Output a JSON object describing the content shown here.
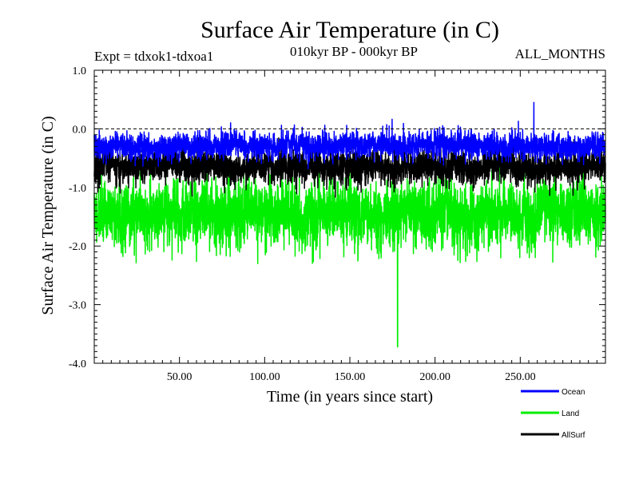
{
  "chart_data": {
    "type": "line",
    "title": "Surface Air Temperature (in C)",
    "subtitle_left": "Expt = tdxok1-tdxoa1",
    "subtitle_center": "010kyr BP - 000kyr BP",
    "subtitle_right": "ALL_MONTHS",
    "xlabel": "Time (in years since start)",
    "ylabel": "Surface Air Temperature (in C)",
    "xlim": [
      0,
      300
    ],
    "ylim": [
      -4.0,
      1.0
    ],
    "x_ticks": [
      50,
      100,
      150,
      200,
      250
    ],
    "x_tick_labels": [
      "50.00",
      "100.00",
      "150.00",
      "200.00",
      "250.00"
    ],
    "y_ticks": [
      1.0,
      0.0,
      -1.0,
      -2.0,
      -3.0,
      -4.0
    ],
    "y_tick_labels": [
      "1.0",
      "0.0",
      "-1.0",
      "-2.0",
      "-3.0",
      "-4.0"
    ],
    "reference_line": 0.0,
    "points_per_series": 3600,
    "series": [
      {
        "name": "Land",
        "color": "#00ee00",
        "mean": -1.45,
        "spread": 0.33,
        "min": -3.72,
        "max": -0.15,
        "min_at": 178,
        "seed": 11
      },
      {
        "name": "AllSurf",
        "color": "#000000",
        "mean": -0.65,
        "spread": 0.17,
        "min": -1.3,
        "max": -0.15,
        "seed": 23
      },
      {
        "name": "Ocean",
        "color": "#0000ff",
        "mean": -0.3,
        "spread": 0.13,
        "min": -0.8,
        "max": 0.45,
        "max_at": 258,
        "seed": 37
      }
    ],
    "legend": [
      {
        "label": "Ocean",
        "color": "#0000ff"
      },
      {
        "label": "Land",
        "color": "#00ee00"
      },
      {
        "label": "AllSurf",
        "color": "#000000"
      }
    ]
  }
}
